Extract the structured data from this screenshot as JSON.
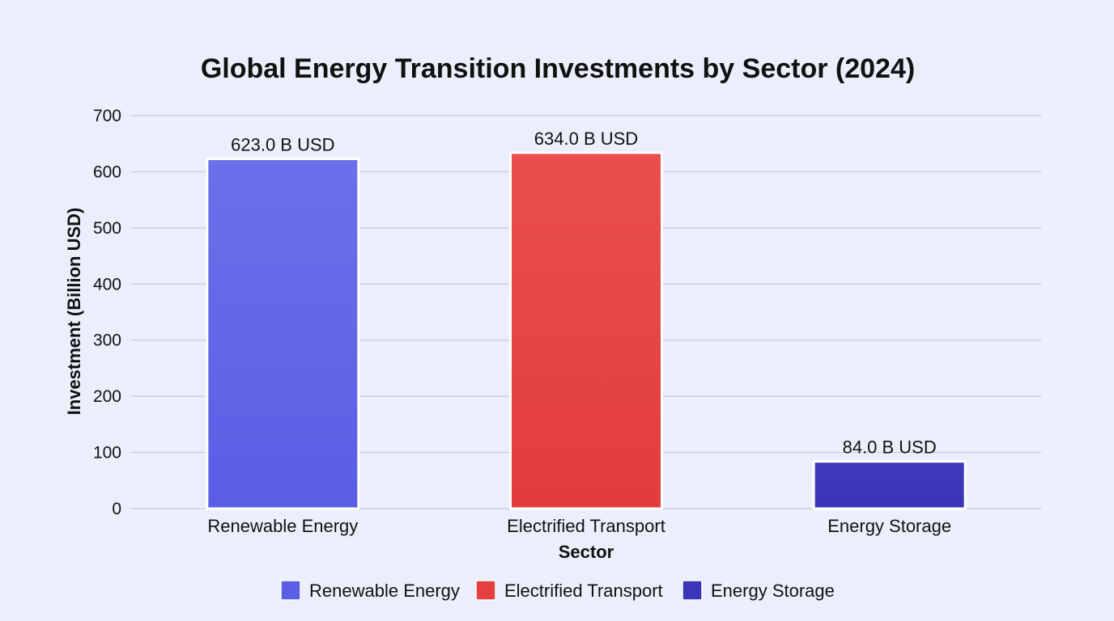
{
  "chart_data": {
    "type": "bar",
    "title": "Global Energy Transition Investments by Sector (2024)",
    "xlabel": "Sector",
    "ylabel": "Investment (Billion USD)",
    "ylim": [
      0,
      700
    ],
    "yticks": [
      0,
      100,
      200,
      300,
      400,
      500,
      600,
      700
    ],
    "categories": [
      "Renewable Energy",
      "Electrified Transport",
      "Energy Storage"
    ],
    "values": [
      623.0,
      634.0,
      84.0
    ],
    "data_labels": [
      "623.0 B USD",
      "634.0 B USD",
      "84.0 B USD"
    ],
    "colors": [
      "#5b5fe6",
      "#e5403f",
      "#3b35b8"
    ],
    "grid": true,
    "legend_position": "bottom-center",
    "legend": [
      {
        "label": "Renewable Energy",
        "color": "#5b5fe6"
      },
      {
        "label": "Electrified Transport",
        "color": "#e5403f"
      },
      {
        "label": "Energy Storage",
        "color": "#3b35b8"
      }
    ]
  }
}
